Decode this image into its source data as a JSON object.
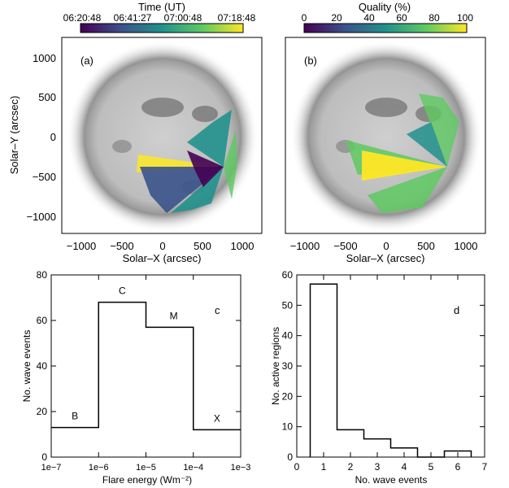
{
  "colorbars": {
    "time": {
      "title": "Time (UT)",
      "ticks": [
        "06:20:48",
        "06:41:27",
        "07:00:48",
        "07:18:48"
      ],
      "colormap": [
        "#440154",
        "#3b528b",
        "#21918c",
        "#5ec962",
        "#fde725"
      ]
    },
    "quality": {
      "title": "Quality (%)",
      "ticks": [
        "0",
        "20",
        "40",
        "60",
        "80",
        "100"
      ],
      "colormap": [
        "#440154",
        "#3b528b",
        "#21918c",
        "#5ec962",
        "#fde725"
      ]
    }
  },
  "panels": {
    "a": {
      "tag": "(a)"
    },
    "b": {
      "tag": "(b)"
    },
    "c": {
      "tag": "c"
    },
    "d": {
      "tag": "d"
    }
  },
  "solar_axes": {
    "xlabel": "Solar–X (arcsec)",
    "ylabel": "Solar–Y (arcsec)",
    "xticks": [
      "−1000",
      "−500",
      "0",
      "500",
      "1000"
    ],
    "yticks": [
      "1000",
      "500",
      "0",
      "−500",
      "−1000"
    ]
  },
  "chart_data": [
    {
      "panel": "c",
      "type": "bar",
      "style": "step",
      "xlabel": "Flare energy (Wm⁻²)",
      "ylabel": "No. wave events",
      "xscale": "log",
      "xticks": [
        "1e−7",
        "1e−6",
        "1e−5",
        "1e−4",
        "1e−3"
      ],
      "xlim": [
        "1e-7",
        "1e-3"
      ],
      "ylim": [
        0,
        80
      ],
      "yticks": [
        0,
        20,
        40,
        60,
        80
      ],
      "categories": [
        "B",
        "C",
        "M",
        "X"
      ],
      "values": [
        13,
        68,
        57,
        12
      ]
    },
    {
      "panel": "d",
      "type": "bar",
      "style": "step",
      "xlabel": "No. wave events",
      "ylabel": "No. active regions",
      "xlim": [
        0,
        7
      ],
      "xticks": [
        0,
        1,
        2,
        3,
        4,
        5,
        6,
        7
      ],
      "ylim": [
        0,
        60
      ],
      "yticks": [
        0,
        10,
        20,
        30,
        40,
        50,
        60
      ],
      "categories": [
        1,
        2,
        3,
        4,
        5,
        6
      ],
      "values": [
        57,
        9,
        6,
        3,
        0,
        2
      ]
    }
  ]
}
